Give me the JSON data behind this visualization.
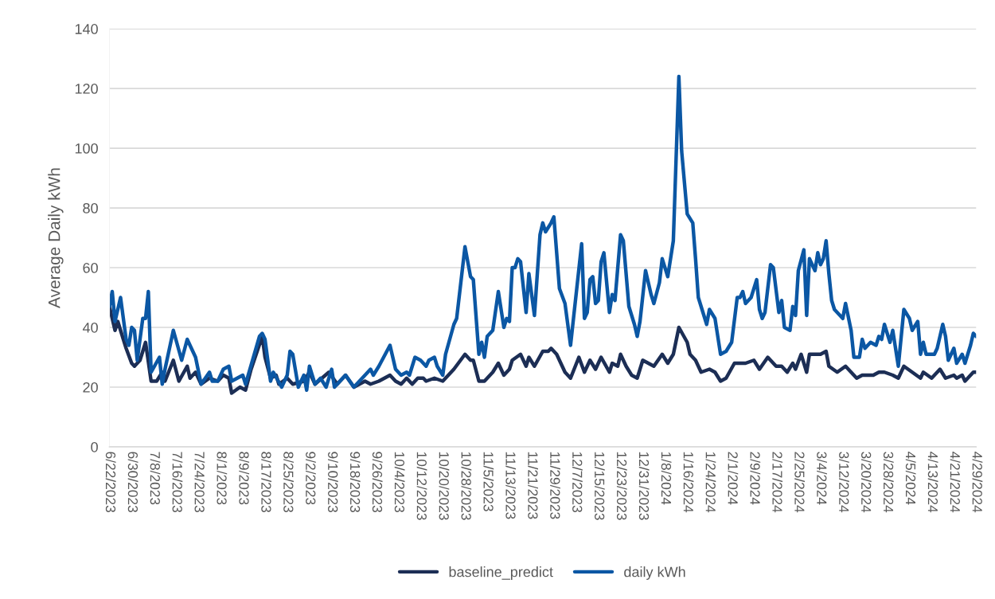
{
  "chart_data": {
    "type": "line",
    "ylabel": "Average Daily kWh",
    "ylim": [
      0,
      140
    ],
    "yticks": [
      0,
      20,
      40,
      60,
      80,
      100,
      120,
      140
    ],
    "xlim": [
      "2023-06-22",
      "2024-04-29"
    ],
    "xticks": [
      {
        "value": "2023-06-22",
        "label": "6/22/2023"
      },
      {
        "value": "2023-06-30",
        "label": "6/30/2023"
      },
      {
        "value": "2023-07-08",
        "label": "7/8/2023"
      },
      {
        "value": "2023-07-16",
        "label": "7/16/2023"
      },
      {
        "value": "2023-07-24",
        "label": "7/24/2023"
      },
      {
        "value": "2023-08-01",
        "label": "8/1/2023"
      },
      {
        "value": "2023-08-09",
        "label": "8/9/2023"
      },
      {
        "value": "2023-08-17",
        "label": "8/17/2023"
      },
      {
        "value": "2023-08-25",
        "label": "8/25/2023"
      },
      {
        "value": "2023-09-02",
        "label": "9/2/2023"
      },
      {
        "value": "2023-09-10",
        "label": "9/10/2023"
      },
      {
        "value": "2023-09-18",
        "label": "9/18/2023"
      },
      {
        "value": "2023-09-26",
        "label": "9/26/2023"
      },
      {
        "value": "2023-10-04",
        "label": "10/4/2023"
      },
      {
        "value": "2023-10-12",
        "label": "10/12/2023"
      },
      {
        "value": "2023-10-20",
        "label": "10/20/2023"
      },
      {
        "value": "2023-10-28",
        "label": "10/28/2023"
      },
      {
        "value": "2023-11-05",
        "label": "11/5/2023"
      },
      {
        "value": "2023-11-13",
        "label": "11/13/2023"
      },
      {
        "value": "2023-11-21",
        "label": "11/21/2023"
      },
      {
        "value": "2023-11-29",
        "label": "11/29/2023"
      },
      {
        "value": "2023-12-07",
        "label": "12/7/2023"
      },
      {
        "value": "2023-12-15",
        "label": "12/15/2023"
      },
      {
        "value": "2023-12-23",
        "label": "12/23/2023"
      },
      {
        "value": "2023-12-31",
        "label": "12/31/2023"
      },
      {
        "value": "2024-01-08",
        "label": "1/8/2024"
      },
      {
        "value": "2024-01-16",
        "label": "1/16/2024"
      },
      {
        "value": "2024-01-24",
        "label": "1/24/2024"
      },
      {
        "value": "2024-02-01",
        "label": "2/1/2024"
      },
      {
        "value": "2024-02-09",
        "label": "2/9/2024"
      },
      {
        "value": "2024-02-17",
        "label": "2/17/2024"
      },
      {
        "value": "2024-02-25",
        "label": "2/25/2024"
      },
      {
        "value": "2024-03-04",
        "label": "3/4/2024"
      },
      {
        "value": "2024-03-12",
        "label": "3/12/2024"
      },
      {
        "value": "2024-03-20",
        "label": "3/20/2024"
      },
      {
        "value": "2024-03-28",
        "label": "3/28/2024"
      },
      {
        "value": "2024-04-05",
        "label": "4/5/2024"
      },
      {
        "value": "2024-04-13",
        "label": "4/13/2024"
      },
      {
        "value": "2024-04-21",
        "label": "4/21/2024"
      },
      {
        "value": "2024-04-29",
        "label": "4/29/2024"
      }
    ],
    "grid": "y",
    "legend": "bottom",
    "marker": "none",
    "line_style": "solid",
    "series": [
      {
        "name": "baseline_predict",
        "color": "#1c2e55",
        "x": [
          "2023-06-22",
          "2023-06-24",
          "2023-06-25",
          "2023-06-28",
          "2023-06-30",
          "2023-07-01",
          "2023-07-03",
          "2023-07-05",
          "2023-07-07",
          "2023-07-09",
          "2023-07-11",
          "2023-07-12",
          "2023-07-15",
          "2023-07-17",
          "2023-07-20",
          "2023-07-21",
          "2023-07-23",
          "2023-07-25",
          "2023-07-28",
          "2023-07-31",
          "2023-08-02",
          "2023-08-04",
          "2023-08-05",
          "2023-08-08",
          "2023-08-10",
          "2023-08-12",
          "2023-08-16",
          "2023-08-17",
          "2023-08-19",
          "2023-08-21",
          "2023-08-22",
          "2023-08-25",
          "2023-08-27",
          "2023-08-31",
          "2023-09-02",
          "2023-09-04",
          "2023-09-09",
          "2023-09-12",
          "2023-09-15",
          "2023-09-18",
          "2023-09-22",
          "2023-09-24",
          "2023-09-27",
          "2023-10-01",
          "2023-10-03",
          "2023-10-05",
          "2023-10-07",
          "2023-10-09",
          "2023-10-11",
          "2023-10-13",
          "2023-10-14",
          "2023-10-17",
          "2023-10-20",
          "2023-10-24",
          "2023-10-28",
          "2023-10-30",
          "2023-10-31",
          "2023-11-02",
          "2023-11-04",
          "2023-11-06",
          "2023-11-07",
          "2023-11-09",
          "2023-11-11",
          "2023-11-13",
          "2023-11-14",
          "2023-11-17",
          "2023-11-19",
          "2023-11-20",
          "2023-11-22",
          "2023-11-25",
          "2023-11-27",
          "2023-11-28",
          "2023-11-30",
          "2023-12-02",
          "2023-12-03",
          "2023-12-05",
          "2023-12-08",
          "2023-12-10",
          "2023-12-12",
          "2023-12-14",
          "2023-12-16",
          "2023-12-19",
          "2023-12-20",
          "2023-12-22",
          "2023-12-23",
          "2023-12-25",
          "2023-12-27",
          "2023-12-29",
          "2023-12-31",
          "2024-01-04",
          "2024-01-07",
          "2024-01-09",
          "2024-01-11",
          "2024-01-13",
          "2024-01-16",
          "2024-01-17",
          "2024-01-19",
          "2024-01-21",
          "2024-01-24",
          "2024-01-26",
          "2024-01-28",
          "2024-01-30",
          "2024-02-02",
          "2024-02-06",
          "2024-02-09",
          "2024-02-11",
          "2024-02-14",
          "2024-02-17",
          "2024-02-19",
          "2024-02-21",
          "2024-02-23",
          "2024-02-24",
          "2024-02-26",
          "2024-02-28",
          "2024-02-29",
          "2024-03-04",
          "2024-03-06",
          "2024-03-07",
          "2024-03-10",
          "2024-03-13",
          "2024-03-15",
          "2024-03-17",
          "2024-03-19",
          "2024-03-21",
          "2024-03-23",
          "2024-03-25",
          "2024-03-27",
          "2024-03-30",
          "2024-04-01",
          "2024-04-03",
          "2024-04-06",
          "2024-04-09",
          "2024-04-10",
          "2024-04-13",
          "2024-04-16",
          "2024-04-18",
          "2024-04-21",
          "2024-04-22",
          "2024-04-24",
          "2024-04-25",
          "2024-04-28",
          "2024-04-29"
        ],
        "values": [
          47,
          39,
          42,
          33,
          28,
          27,
          29,
          35,
          22,
          22,
          25,
          22,
          29,
          22,
          27,
          23,
          25,
          21,
          23,
          22,
          24,
          23,
          18,
          20,
          19,
          26,
          37,
          30,
          23,
          24,
          21,
          23,
          21,
          22,
          25,
          21,
          25,
          21,
          24,
          20,
          22,
          21,
          22,
          24,
          22,
          21,
          23,
          21,
          23,
          23,
          22,
          23,
          22,
          26,
          31,
          29,
          29,
          22,
          22,
          24,
          25,
          28,
          24,
          26,
          29,
          31,
          27,
          30,
          27,
          32,
          32,
          33,
          31,
          27,
          25,
          23,
          30,
          25,
          29,
          26,
          30,
          25,
          28,
          27,
          31,
          27,
          24,
          23,
          29,
          27,
          31,
          28,
          31,
          40,
          35,
          31,
          29,
          25,
          26,
          25,
          22,
          23,
          28,
          28,
          29,
          26,
          30,
          27,
          27,
          25,
          28,
          26,
          31,
          25,
          31,
          31,
          32,
          27,
          25,
          27,
          25,
          23,
          24,
          24,
          24,
          25,
          25,
          24,
          23,
          27,
          25,
          23,
          25,
          23,
          26,
          23,
          24,
          23,
          24,
          22,
          25,
          25
        ]
      },
      {
        "name": "daily kWh",
        "color": "#0b57a4",
        "x": [
          "2023-06-22",
          "2023-06-23",
          "2023-06-24",
          "2023-06-26",
          "2023-06-28",
          "2023-06-29",
          "2023-06-30",
          "2023-07-01",
          "2023-07-02",
          "2023-07-04",
          "2023-07-05",
          "2023-07-06",
          "2023-07-07",
          "2023-07-10",
          "2023-07-11",
          "2023-07-12",
          "2023-07-15",
          "2023-07-18",
          "2023-07-20",
          "2023-07-23",
          "2023-07-25",
          "2023-07-28",
          "2023-07-29",
          "2023-07-31",
          "2023-08-02",
          "2023-08-04",
          "2023-08-05",
          "2023-08-09",
          "2023-08-10",
          "2023-08-15",
          "2023-08-16",
          "2023-08-17",
          "2023-08-19",
          "2023-08-20",
          "2023-08-23",
          "2023-08-25",
          "2023-08-26",
          "2023-08-27",
          "2023-08-29",
          "2023-08-31",
          "2023-09-01",
          "2023-09-02",
          "2023-09-04",
          "2023-09-06",
          "2023-09-08",
          "2023-09-10",
          "2023-09-11",
          "2023-09-15",
          "2023-09-18",
          "2023-09-21",
          "2023-09-24",
          "2023-09-25",
          "2023-09-27",
          "2023-10-01",
          "2023-10-03",
          "2023-10-05",
          "2023-10-07",
          "2023-10-08",
          "2023-10-10",
          "2023-10-12",
          "2023-10-14",
          "2023-10-15",
          "2023-10-17",
          "2023-10-18",
          "2023-10-20",
          "2023-10-21",
          "2023-10-24",
          "2023-10-25",
          "2023-10-28",
          "2023-10-30",
          "2023-10-31",
          "2023-11-02",
          "2023-11-03",
          "2023-11-04",
          "2023-11-05",
          "2023-11-07",
          "2023-11-09",
          "2023-11-11",
          "2023-11-12",
          "2023-11-13",
          "2023-11-14",
          "2023-11-15",
          "2023-11-16",
          "2023-11-17",
          "2023-11-19",
          "2023-11-20",
          "2023-11-22",
          "2023-11-24",
          "2023-11-25",
          "2023-11-26",
          "2023-11-28",
          "2023-11-29",
          "2023-12-01",
          "2023-12-03",
          "2023-12-05",
          "2023-12-09",
          "2023-12-10",
          "2023-12-11",
          "2023-12-12",
          "2023-12-13",
          "2023-12-14",
          "2023-12-15",
          "2023-12-16",
          "2023-12-17",
          "2023-12-19",
          "2023-12-20",
          "2023-12-21",
          "2023-12-23",
          "2023-12-24",
          "2023-12-26",
          "2023-12-28",
          "2023-12-29",
          "2023-12-30",
          "2024-01-01",
          "2024-01-03",
          "2024-01-04",
          "2024-01-06",
          "2024-01-07",
          "2024-01-09",
          "2024-01-11",
          "2024-01-13",
          "2024-01-14",
          "2024-01-16",
          "2024-01-18",
          "2024-01-19",
          "2024-01-20",
          "2024-01-23",
          "2024-01-24",
          "2024-01-26",
          "2024-01-28",
          "2024-01-30",
          "2024-02-01",
          "2024-02-03",
          "2024-02-04",
          "2024-02-05",
          "2024-02-06",
          "2024-02-08",
          "2024-02-10",
          "2024-02-11",
          "2024-02-12",
          "2024-02-13",
          "2024-02-15",
          "2024-02-16",
          "2024-02-18",
          "2024-02-19",
          "2024-02-20",
          "2024-02-22",
          "2024-02-23",
          "2024-02-24",
          "2024-02-25",
          "2024-02-27",
          "2024-02-28",
          "2024-02-29",
          "2024-03-02",
          "2024-03-03",
          "2024-03-04",
          "2024-03-05",
          "2024-03-06",
          "2024-03-07",
          "2024-03-08",
          "2024-03-09",
          "2024-03-10",
          "2024-03-12",
          "2024-03-13",
          "2024-03-15",
          "2024-03-16",
          "2024-03-18",
          "2024-03-19",
          "2024-03-20",
          "2024-03-22",
          "2024-03-24",
          "2024-03-25",
          "2024-03-26",
          "2024-03-27",
          "2024-03-29",
          "2024-03-30",
          "2024-04-01",
          "2024-04-03",
          "2024-04-05",
          "2024-04-06",
          "2024-04-08",
          "2024-04-09",
          "2024-04-10",
          "2024-04-11",
          "2024-04-13",
          "2024-04-14",
          "2024-04-15",
          "2024-04-17",
          "2024-04-18",
          "2024-04-19",
          "2024-04-21",
          "2024-04-22",
          "2024-04-24",
          "2024-04-25",
          "2024-04-27",
          "2024-04-28",
          "2024-04-29"
        ],
        "values": [
          47,
          52,
          42,
          50,
          36,
          34,
          40,
          39,
          29,
          43,
          43,
          52,
          25,
          30,
          21,
          26,
          39,
          29,
          36,
          30,
          21,
          25,
          22,
          22,
          26,
          27,
          22,
          24,
          21,
          37,
          38,
          36,
          22,
          25,
          20,
          24,
          32,
          31,
          20,
          24,
          19,
          27,
          21,
          23,
          20,
          26,
          20,
          24,
          20,
          23,
          26,
          24,
          27,
          34,
          26,
          24,
          25,
          24,
          30,
          29,
          27,
          29,
          30,
          27,
          24,
          31,
          41,
          43,
          67,
          57,
          56,
          31,
          35,
          30,
          37,
          39,
          52,
          40,
          43,
          42,
          60,
          60,
          63,
          62,
          45,
          58,
          44,
          71,
          75,
          72,
          75,
          77,
          53,
          48,
          34,
          68,
          43,
          45,
          56,
          57,
          48,
          49,
          62,
          65,
          45,
          51,
          49,
          71,
          69,
          47,
          41,
          37,
          42,
          59,
          51,
          48,
          55,
          63,
          57,
          69,
          124,
          99,
          78,
          75,
          63,
          50,
          41,
          46,
          43,
          31,
          32,
          35,
          50,
          50,
          52,
          48,
          50,
          56,
          46,
          43,
          45,
          61,
          60,
          45,
          49,
          40,
          39,
          47,
          44,
          59,
          66,
          44,
          63,
          59,
          65,
          61,
          63,
          69,
          58,
          49,
          46,
          45,
          43,
          48,
          39,
          30,
          30,
          36,
          33,
          35,
          34,
          37,
          36,
          41,
          35,
          39,
          27,
          46,
          43,
          39,
          42,
          31,
          35,
          31,
          31,
          31,
          33,
          41,
          37,
          29,
          33,
          28,
          31,
          28,
          34,
          38,
          37
        ]
      }
    ]
  }
}
